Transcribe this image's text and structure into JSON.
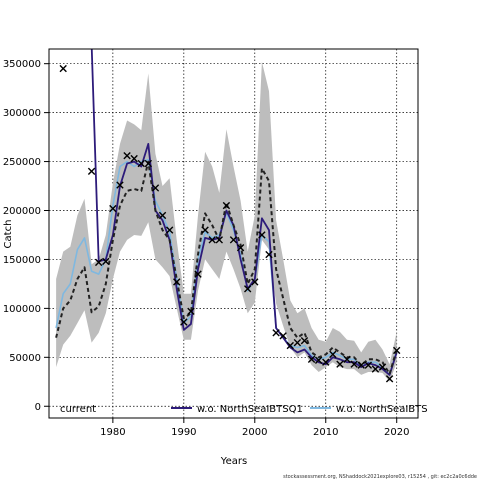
{
  "chart_data": {
    "type": "line",
    "title": "",
    "xlabel": "Years",
    "ylabel": "Catch",
    "xlim": [
      1971,
      2023
    ],
    "ylim": [
      -12000,
      365000
    ],
    "x_ticks": [
      1980,
      1990,
      2000,
      2010,
      2020
    ],
    "y_ticks": [
      0,
      50000,
      100000,
      150000,
      200000,
      250000,
      300000,
      350000
    ],
    "grid": true,
    "legend": {
      "placement": "bottom",
      "entries": [
        {
          "label": "current",
          "color": "#000000",
          "style": "dashed"
        },
        {
          "label": "w.o. NorthSeaIBTSQ1",
          "color": "#2d1b7a",
          "style": "solid"
        },
        {
          "label": "w.o. NorthSeaIBTS",
          "color": "#7fb8e0",
          "style": "solid"
        }
      ]
    },
    "footer": "stockassessment.org, NShaddock2021explore03, r15254 , git: ec2c2a0c6dde",
    "series": [
      {
        "name": "current",
        "color": "#222222",
        "style": "dashed",
        "x": [
          1972,
          1973,
          1974,
          1975,
          1976,
          1977,
          1978,
          1979,
          1980,
          1981,
          1982,
          1983,
          1984,
          1985,
          1986,
          1987,
          1988,
          1989,
          1990,
          1991,
          1992,
          1993,
          1994,
          1995,
          1996,
          1997,
          1998,
          1999,
          2000,
          2001,
          2002,
          2003,
          2004,
          2005,
          2006,
          2007,
          2008,
          2009,
          2010,
          2011,
          2012,
          2013,
          2014,
          2015,
          2016,
          2017,
          2018,
          2019,
          2020
        ],
        "values": [
          70000,
          100000,
          108000,
          130000,
          142000,
          96000,
          102000,
          125000,
          170000,
          205000,
          220000,
          222000,
          220000,
          250000,
          200000,
          180000,
          170000,
          130000,
          90000,
          95000,
          155000,
          197000,
          185000,
          170000,
          208000,
          185000,
          165000,
          125000,
          140000,
          243000,
          230000,
          140000,
          110000,
          80000,
          70000,
          75000,
          55000,
          50000,
          53000,
          60000,
          55000,
          50000,
          50000,
          42000,
          48000,
          48000,
          45000,
          33000,
          58000
        ]
      },
      {
        "name": "current-ci-upper",
        "x": [
          1972,
          1973,
          1974,
          1975,
          1976,
          1977,
          1978,
          1979,
          1980,
          1981,
          1982,
          1983,
          1984,
          1985,
          1986,
          1987,
          1988,
          1989,
          1990,
          1991,
          1992,
          1993,
          1994,
          1995,
          1996,
          1997,
          1998,
          1999,
          2000,
          2001,
          2002,
          2003,
          2004,
          2005,
          2006,
          2007,
          2008,
          2009,
          2010,
          2011,
          2012,
          2013,
          2014,
          2015,
          2016,
          2017,
          2018,
          2019,
          2020
        ],
        "values": [
          130000,
          158000,
          163000,
          195000,
          212000,
          145000,
          150000,
          175000,
          228000,
          268000,
          292000,
          288000,
          282000,
          340000,
          258000,
          225000,
          233000,
          170000,
          115000,
          115000,
          195000,
          260000,
          245000,
          218000,
          283000,
          245000,
          210000,
          158000,
          195000,
          352000,
          322000,
          190000,
          150000,
          108000,
          95000,
          100000,
          80000,
          68000,
          66000,
          80000,
          76000,
          68000,
          67000,
          55000,
          66000,
          68000,
          58000,
          43000,
          76000
        ]
      },
      {
        "name": "current-ci-lower",
        "x": [
          1972,
          1973,
          1974,
          1975,
          1976,
          1977,
          1978,
          1979,
          1980,
          1981,
          1982,
          1983,
          1984,
          1985,
          1986,
          1987,
          1988,
          1989,
          1990,
          1991,
          1992,
          1993,
          1994,
          1995,
          1996,
          1997,
          1998,
          1999,
          2000,
          2001,
          2002,
          2003,
          2004,
          2005,
          2006,
          2007,
          2008,
          2009,
          2010,
          2011,
          2012,
          2013,
          2014,
          2015,
          2016,
          2017,
          2018,
          2019,
          2020
        ],
        "values": [
          40000,
          63000,
          72000,
          85000,
          98000,
          65000,
          75000,
          95000,
          130000,
          158000,
          170000,
          175000,
          174000,
          188000,
          150000,
          142000,
          133000,
          100000,
          68000,
          68000,
          118000,
          150000,
          140000,
          130000,
          158000,
          140000,
          120000,
          95000,
          106000,
          170000,
          160000,
          105000,
          82000,
          60000,
          50000,
          55000,
          42000,
          35000,
          40000,
          45000,
          40000,
          38000,
          38000,
          32000,
          35000,
          35000,
          34000,
          25000,
          45000
        ]
      },
      {
        "name": "w.o. NorthSeaIBTSQ1",
        "color": "#2d1b7a",
        "style": "solid",
        "x": [
          1977,
          1978,
          1979,
          1980,
          1981,
          1982,
          1983,
          1984,
          1985,
          1986,
          1987,
          1988,
          1989,
          1990,
          1991,
          1992,
          1993,
          1994,
          1995,
          1996,
          1997,
          1998,
          1999,
          2000,
          2001,
          2002,
          2003,
          2004,
          2005,
          2006,
          2007,
          2008,
          2009,
          2010,
          2011,
          2012,
          2013,
          2014,
          2015,
          2016,
          2017,
          2018,
          2019,
          2020
        ],
        "values": [
          370000,
          148000,
          150000,
          175000,
          225000,
          248000,
          250000,
          245000,
          268000,
          200000,
          190000,
          170000,
          120000,
          78000,
          84000,
          140000,
          172000,
          170000,
          172000,
          200000,
          185000,
          150000,
          120000,
          130000,
          192000,
          180000,
          80000,
          70000,
          60000,
          55000,
          58000,
          50000,
          45000,
          43000,
          50000,
          48000,
          45000,
          45000,
          40000,
          44000,
          42000,
          38000,
          32000,
          55000
        ]
      },
      {
        "name": "w.o. NorthSeaIBTS",
        "color": "#7fb8e0",
        "style": "solid",
        "x": [
          1972,
          1973,
          1974,
          1975,
          1976,
          1977,
          1978,
          1979,
          1980,
          1981,
          1982,
          1983,
          1984,
          1985,
          1986,
          1987,
          1988,
          1989,
          1990,
          1991,
          1992,
          1993,
          1994,
          1995,
          1996,
          1997,
          1998,
          1999,
          2000,
          2001,
          2002,
          2003,
          2004,
          2005,
          2006,
          2007,
          2008,
          2009,
          2010,
          2011,
          2012,
          2013,
          2014,
          2015,
          2016,
          2017,
          2018,
          2019,
          2020
        ],
        "values": [
          80000,
          115000,
          125000,
          160000,
          172000,
          138000,
          135000,
          150000,
          205000,
          245000,
          250000,
          245000,
          250000,
          252000,
          210000,
          195000,
          178000,
          130000,
          85000,
          92000,
          150000,
          178000,
          172000,
          175000,
          198000,
          180000,
          155000,
          118000,
          130000,
          175000,
          168000,
          80000,
          70000,
          62000,
          60000,
          62000,
          52000,
          48000,
          50000,
          55000,
          52000,
          48000,
          48000,
          40000,
          45000,
          45000,
          40000,
          32000,
          57000
        ]
      }
    ],
    "observations": {
      "x": [
        1973,
        1977,
        1978,
        1979,
        1980,
        1981,
        1982,
        1983,
        1984,
        1985,
        1986,
        1987,
        1988,
        1989,
        1990,
        1991,
        1992,
        1993,
        1994,
        1995,
        1996,
        1997,
        1998,
        1999,
        2000,
        2001,
        2002,
        2003,
        2004,
        2005,
        2006,
        2007,
        2008,
        2009,
        2010,
        2011,
        2012,
        2013,
        2014,
        2015,
        2016,
        2017,
        2018,
        2019,
        2020
      ],
      "values": [
        345000,
        240000,
        147000,
        148000,
        202000,
        226000,
        256000,
        253000,
        248000,
        248000,
        223000,
        195000,
        180000,
        127000,
        86000,
        97000,
        135000,
        180000,
        170000,
        170000,
        205000,
        170000,
        162000,
        120000,
        127000,
        175000,
        155000,
        75000,
        72000,
        62000,
        65000,
        67000,
        48000,
        47000,
        45000,
        53000,
        43000,
        48000,
        43000,
        42000,
        42000,
        38000,
        40000,
        28000,
        57000
      ]
    }
  }
}
